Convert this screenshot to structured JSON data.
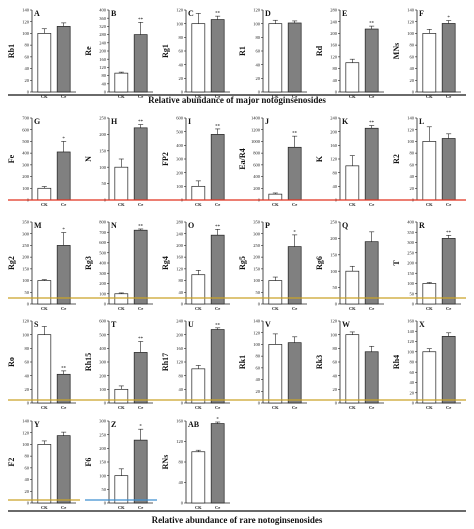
{
  "colors": {
    "ck_fill": "#ffffff",
    "ce_fill": "#808080",
    "bar_stroke": "#222222",
    "divider_black": "#111111",
    "divider_red": "#e0301e",
    "divider_gold": "#c9a227",
    "divider_blue": "#3f8fd0"
  },
  "captions": {
    "major": "Relative abundance of major notoginsenosides",
    "rare": "Relative abundance of rare notoginsenosides"
  },
  "chart_data": [
    {
      "type": "bar",
      "panel": "A",
      "ylabel": "Rb1",
      "categories": [
        "CK",
        "Ce"
      ],
      "values": [
        100,
        112
      ],
      "errors": [
        8,
        6
      ],
      "sig": [
        "",
        ""
      ],
      "yticks": [
        0,
        20,
        40,
        60,
        80,
        100,
        120,
        140
      ],
      "ylim": [
        0,
        140
      ]
    },
    {
      "type": "bar",
      "panel": "B",
      "ylabel": "Re",
      "categories": [
        "CK",
        "Ce"
      ],
      "values": [
        92,
        280
      ],
      "errors": [
        5,
        60
      ],
      "sig": [
        "",
        "**"
      ],
      "yticks": [
        0,
        40,
        80,
        120,
        160,
        200,
        240,
        280,
        320,
        360,
        400
      ],
      "ylim": [
        0,
        400
      ]
    },
    {
      "type": "bar",
      "panel": "C",
      "ylabel": "Rg1",
      "categories": [
        "CK",
        "Ce"
      ],
      "values": [
        100,
        106
      ],
      "errors": [
        15,
        5
      ],
      "sig": [
        "",
        "**"
      ],
      "yticks": [
        0,
        20,
        40,
        60,
        80,
        100,
        120
      ],
      "ylim": [
        0,
        120
      ]
    },
    {
      "type": "bar",
      "panel": "D",
      "ylabel": "R1",
      "categories": [
        "CK",
        "Ce"
      ],
      "values": [
        100,
        101
      ],
      "errors": [
        5,
        3
      ],
      "sig": [
        "",
        ""
      ],
      "yticks": [
        0,
        20,
        40,
        60,
        80,
        100,
        120
      ],
      "ylim": [
        0,
        120
      ]
    },
    {
      "type": "bar",
      "panel": "E",
      "ylabel": "Rd",
      "categories": [
        "CK",
        "Ce"
      ],
      "values": [
        100,
        215
      ],
      "errors": [
        12,
        10
      ],
      "sig": [
        "",
        "**"
      ],
      "yticks": [
        0,
        40,
        80,
        120,
        160,
        200,
        240,
        280
      ],
      "ylim": [
        0,
        280
      ]
    },
    {
      "type": "bar",
      "panel": "F",
      "ylabel": "MNs",
      "categories": [
        "CK",
        "Ce"
      ],
      "values": [
        100,
        117
      ],
      "errors": [
        7,
        5
      ],
      "sig": [
        "",
        "*"
      ],
      "yticks": [
        0,
        20,
        40,
        60,
        80,
        100,
        120,
        140
      ],
      "ylim": [
        0,
        140
      ]
    },
    {
      "type": "bar",
      "panel": "G",
      "ylabel": "Fe",
      "categories": [
        "CK",
        "Ce"
      ],
      "values": [
        100,
        410
      ],
      "errors": [
        15,
        90
      ],
      "sig": [
        "",
        "*"
      ],
      "yticks": [
        0,
        100,
        200,
        300,
        400,
        500,
        600,
        700
      ],
      "ylim": [
        0,
        700
      ]
    },
    {
      "type": "bar",
      "panel": "H",
      "ylabel": "N",
      "categories": [
        "CK",
        "Ce"
      ],
      "values": [
        100,
        220
      ],
      "errors": [
        25,
        10
      ],
      "sig": [
        "",
        "**"
      ],
      "yticks": [
        0,
        50,
        100,
        150,
        200,
        250
      ],
      "ylim": [
        0,
        250
      ]
    },
    {
      "type": "bar",
      "panel": "I",
      "ylabel": "FP2",
      "categories": [
        "CK",
        "Ce"
      ],
      "values": [
        100,
        480
      ],
      "errors": [
        40,
        40
      ],
      "sig": [
        "",
        "**"
      ],
      "yticks": [
        0,
        100,
        200,
        300,
        400,
        500,
        600
      ],
      "ylim": [
        0,
        600
      ]
    },
    {
      "type": "bar",
      "panel": "J",
      "ylabel": "Ea/R4",
      "categories": [
        "CK",
        "Ce"
      ],
      "values": [
        100,
        900
      ],
      "errors": [
        20,
        190
      ],
      "sig": [
        "",
        "**"
      ],
      "yticks": [
        0,
        200,
        400,
        600,
        800,
        1000,
        1200,
        1400
      ],
      "ylim": [
        0,
        1400
      ]
    },
    {
      "type": "bar",
      "panel": "K",
      "ylabel": "K",
      "categories": [
        "CK",
        "Ce"
      ],
      "values": [
        100,
        210
      ],
      "errors": [
        30,
        8
      ],
      "sig": [
        "",
        "**"
      ],
      "yticks": [
        0,
        40,
        80,
        120,
        160,
        200,
        240
      ],
      "ylim": [
        0,
        240
      ]
    },
    {
      "type": "bar",
      "panel": "L",
      "ylabel": "R2",
      "categories": [
        "CK",
        "Ce"
      ],
      "values": [
        100,
        105
      ],
      "errors": [
        25,
        8
      ],
      "sig": [
        "",
        ""
      ],
      "yticks": [
        0,
        20,
        40,
        60,
        80,
        100,
        120,
        140
      ],
      "ylim": [
        0,
        140
      ]
    },
    {
      "type": "bar",
      "panel": "M",
      "ylabel": "Rg2",
      "categories": [
        "CK",
        "Ce"
      ],
      "values": [
        100,
        250
      ],
      "errors": [
        4,
        55
      ],
      "sig": [
        "",
        "*"
      ],
      "yticks": [
        0,
        50,
        100,
        150,
        200,
        250,
        300,
        350
      ],
      "ylim": [
        0,
        350
      ]
    },
    {
      "type": "bar",
      "panel": "N",
      "ylabel": "Rg3",
      "categories": [
        "CK",
        "Ce"
      ],
      "values": [
        100,
        720
      ],
      "errors": [
        8,
        12
      ],
      "sig": [
        "",
        "**"
      ],
      "yticks": [
        0,
        100,
        200,
        300,
        400,
        500,
        600,
        700,
        800
      ],
      "ylim": [
        0,
        800
      ]
    },
    {
      "type": "bar",
      "panel": "O",
      "ylabel": "Rg4",
      "categories": [
        "CK",
        "Ce"
      ],
      "values": [
        100,
        235
      ],
      "errors": [
        15,
        20
      ],
      "sig": [
        "",
        "**"
      ],
      "yticks": [
        0,
        40,
        80,
        120,
        160,
        200,
        240,
        280
      ],
      "ylim": [
        0,
        280
      ]
    },
    {
      "type": "bar",
      "panel": "P",
      "ylabel": "Rg5",
      "categories": [
        "CK",
        "Ce"
      ],
      "values": [
        100,
        245
      ],
      "errors": [
        15,
        50
      ],
      "sig": [
        "",
        "*"
      ],
      "yticks": [
        0,
        50,
        100,
        150,
        200,
        250,
        300,
        350
      ],
      "ylim": [
        0,
        350
      ]
    },
    {
      "type": "bar",
      "panel": "Q",
      "ylabel": "Rg6",
      "categories": [
        "CK",
        "Ce"
      ],
      "values": [
        100,
        190
      ],
      "errors": [
        15,
        30
      ],
      "sig": [
        "",
        ""
      ],
      "yticks": [
        0,
        50,
        100,
        150,
        200,
        250
      ],
      "ylim": [
        0,
        250
      ]
    },
    {
      "type": "bar",
      "panel": "R",
      "ylabel": "T",
      "categories": [
        "CK",
        "Ce"
      ],
      "values": [
        100,
        320
      ],
      "errors": [
        5,
        15
      ],
      "sig": [
        "",
        "**"
      ],
      "yticks": [
        0,
        50,
        100,
        150,
        200,
        250,
        300,
        350,
        400
      ],
      "ylim": [
        0,
        400
      ]
    },
    {
      "type": "bar",
      "panel": "S",
      "ylabel": "Ro",
      "categories": [
        "CK",
        "Ce"
      ],
      "values": [
        100,
        42
      ],
      "errors": [
        12,
        5
      ],
      "sig": [
        "",
        "**"
      ],
      "yticks": [
        0,
        20,
        40,
        60,
        80,
        100,
        120
      ],
      "ylim": [
        0,
        120
      ]
    },
    {
      "type": "bar",
      "panel": "T",
      "ylabel": "Rh15",
      "categories": [
        "CK",
        "Ce"
      ],
      "values": [
        100,
        370
      ],
      "errors": [
        25,
        80
      ],
      "sig": [
        "",
        "**"
      ],
      "yticks": [
        0,
        100,
        200,
        300,
        400,
        500,
        600
      ],
      "ylim": [
        0,
        600
      ]
    },
    {
      "type": "bar",
      "panel": "U",
      "ylabel": "Rh17",
      "categories": [
        "CK",
        "Ce"
      ],
      "values": [
        100,
        215
      ],
      "errors": [
        10,
        5
      ],
      "sig": [
        "",
        "**"
      ],
      "yticks": [
        0,
        40,
        80,
        120,
        160,
        200,
        240
      ],
      "ylim": [
        0,
        240
      ]
    },
    {
      "type": "bar",
      "panel": "V",
      "ylabel": "Rk1",
      "categories": [
        "CK",
        "Ce"
      ],
      "values": [
        100,
        103
      ],
      "errors": [
        18,
        10
      ],
      "sig": [
        "",
        ""
      ],
      "yticks": [
        0,
        20,
        40,
        60,
        80,
        100,
        120,
        140
      ],
      "ylim": [
        0,
        140
      ]
    },
    {
      "type": "bar",
      "panel": "W",
      "ylabel": "Rk3",
      "categories": [
        "CK",
        "Ce"
      ],
      "values": [
        100,
        75
      ],
      "errors": [
        4,
        8
      ],
      "sig": [
        "",
        ""
      ],
      "yticks": [
        0,
        20,
        40,
        60,
        80,
        100,
        120
      ],
      "ylim": [
        0,
        120
      ]
    },
    {
      "type": "bar",
      "panel": "X",
      "ylabel": "Rh4",
      "categories": [
        "CK",
        "Ce"
      ],
      "values": [
        100,
        130
      ],
      "errors": [
        6,
        7
      ],
      "sig": [
        "",
        ""
      ],
      "yticks": [
        0,
        20,
        40,
        60,
        80,
        100,
        120,
        140,
        160
      ],
      "ylim": [
        0,
        160
      ]
    },
    {
      "type": "bar",
      "panel": "Y",
      "ylabel": "F2",
      "categories": [
        "CK",
        "Ce"
      ],
      "values": [
        100,
        115
      ],
      "errors": [
        6,
        6
      ],
      "sig": [
        "",
        ""
      ],
      "yticks": [
        0,
        20,
        40,
        60,
        80,
        100,
        120,
        140
      ],
      "ylim": [
        0,
        140
      ]
    },
    {
      "type": "bar",
      "panel": "Z",
      "ylabel": "F6",
      "categories": [
        "CK",
        "Ce"
      ],
      "values": [
        100,
        230
      ],
      "errors": [
        25,
        40
      ],
      "sig": [
        "",
        "*"
      ],
      "yticks": [
        0,
        50,
        100,
        150,
        200,
        250,
        300
      ],
      "ylim": [
        0,
        300
      ]
    },
    {
      "type": "bar",
      "panel": "AB",
      "ylabel": "RNs",
      "categories": [
        "CK",
        "Ce"
      ],
      "values": [
        100,
        155
      ],
      "errors": [
        3,
        3
      ],
      "sig": [
        "",
        "*"
      ],
      "yticks": [
        0,
        40,
        80,
        120,
        160
      ],
      "ylim": [
        0,
        160
      ]
    }
  ]
}
